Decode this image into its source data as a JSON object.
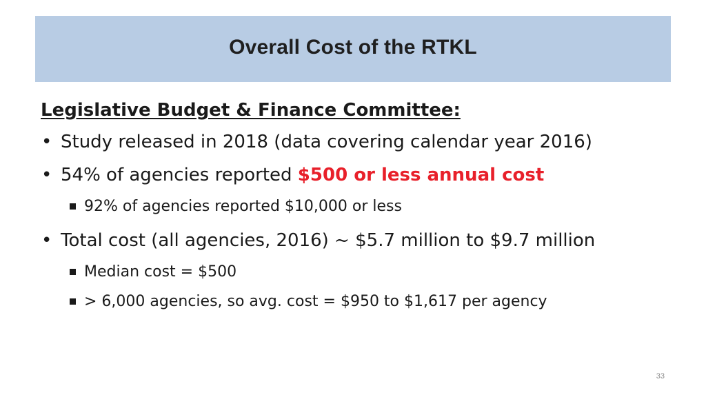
{
  "slide": {
    "title": "Overall Cost of the RTKL",
    "heading": "Legislative Budget & Finance Committee:",
    "bullets": [
      {
        "text": "Study released in 2018 (data covering calendar year 2016)"
      },
      {
        "text": "54% of agencies reported ",
        "highlight": "$500 or less annual cost",
        "sub": [
          {
            "text": "92% of agencies reported $10,000 or less"
          }
        ]
      },
      {
        "text": "Total cost (all agencies, 2016) ~ $5.7 million to $9.7 million",
        "sub": [
          {
            "text": "Median cost = $500"
          },
          {
            "text": "> 6,000 agencies, so avg. cost = $950 to $1,617 per agency"
          }
        ]
      }
    ],
    "bullet_glyph": "•",
    "page_number": "33",
    "colors": {
      "title_band": "#b8cce4",
      "highlight": "#e8202a"
    }
  }
}
